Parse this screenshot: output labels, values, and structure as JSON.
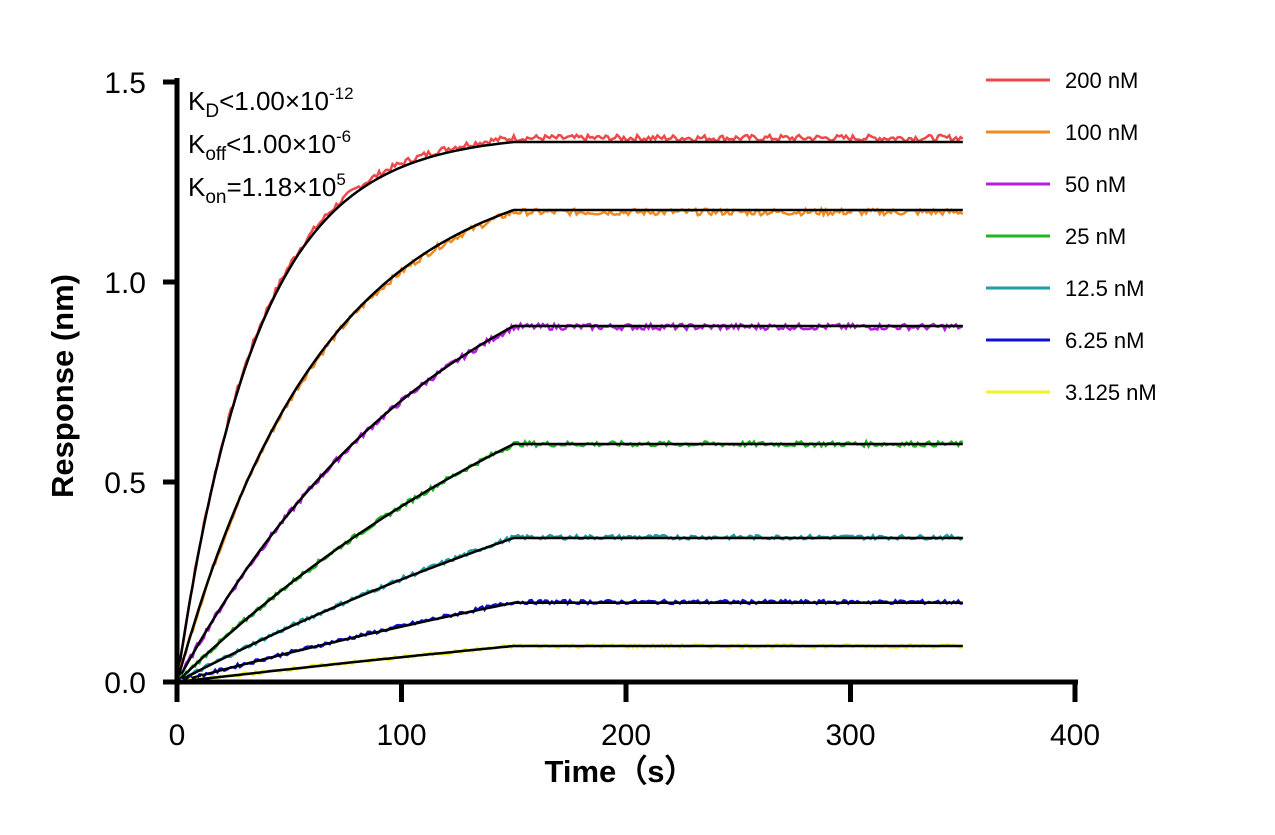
{
  "chart_data": {
    "type": "line",
    "xlabel": "Time（s）",
    "ylabel": "Response (nm)",
    "xlim": [
      0,
      400
    ],
    "ylim": [
      0,
      1.5
    ],
    "xticks": [
      "0",
      "100",
      "200",
      "300",
      "400"
    ],
    "yticks": [
      "0.0",
      "0.5",
      "1.0",
      "1.5"
    ],
    "grid": false,
    "legend_position": "top-right",
    "annotations": {
      "kd": {
        "sym": "K",
        "sub": "D",
        "rel": "<1.00×10",
        "exp": "-12"
      },
      "koff": {
        "sym": "K",
        "sub": "off",
        "rel": "<1.00×10",
        "exp": "-6"
      },
      "kon": {
        "sym": "K",
        "sub": "on",
        "rel": "=1.18×10",
        "exp": "5"
      }
    },
    "association_end": 150,
    "x_end": 350,
    "fit_color": "#000000",
    "series": [
      {
        "name": "200 nM",
        "color": "#f04848",
        "plateau": 1.35,
        "measured_plateau": 1.36,
        "k": 0.028
      },
      {
        "name": "100 nM",
        "color": "#f08a1e",
        "plateau": 1.18,
        "measured_plateau": 1.175,
        "k": 0.0155
      },
      {
        "name": "50 nM",
        "color": "#b41ee0",
        "plateau": 0.89,
        "measured_plateau": 0.888,
        "k": 0.0082
      },
      {
        "name": "25 nM",
        "color": "#22b422",
        "plateau": 0.595,
        "measured_plateau": 0.595,
        "k": 0.0045
      },
      {
        "name": "12.5 nM",
        "color": "#1e9ea6",
        "plateau": 0.36,
        "measured_plateau": 0.362,
        "k": 0.0028
      },
      {
        "name": "6.25 nM",
        "color": "#1010d0",
        "plateau": 0.198,
        "measured_plateau": 0.2,
        "k": 0.002
      },
      {
        "name": "3.125 nM",
        "color": "#f2f22a",
        "plateau": 0.09,
        "measured_plateau": 0.09,
        "k": 0.0014
      }
    ]
  }
}
